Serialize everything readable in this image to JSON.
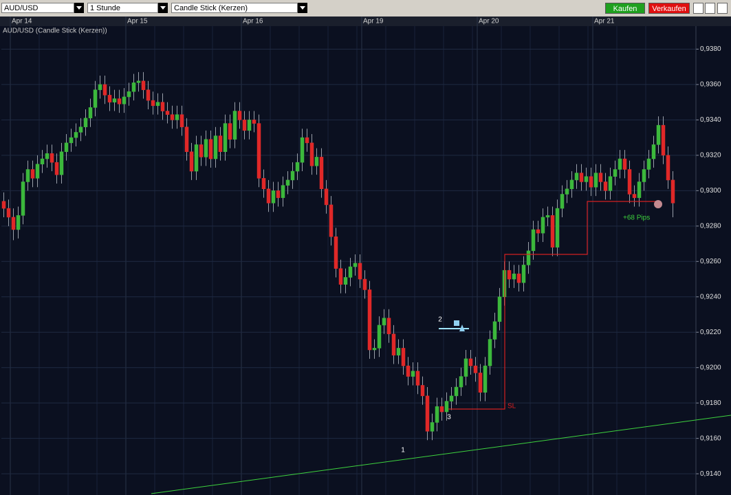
{
  "toolbar": {
    "symbol": "AUD/USD",
    "interval": "1 Stunde",
    "chart_style": "Candle Stick (Kerzen)",
    "buy": "Kaufen",
    "sell": "Verkaufen"
  },
  "chart_data": {
    "type": "candlestick",
    "title": "AUD/USD (Candle Stick (Kerzen))",
    "categories": [
      null,
      null,
      "Apr 14",
      null,
      null,
      null,
      null,
      null,
      null,
      null,
      null,
      null,
      null,
      null,
      null,
      null,
      null,
      null,
      null,
      null,
      null,
      null,
      null,
      null,
      null,
      null,
      "Apr 15",
      null,
      null,
      null,
      null,
      null,
      null,
      null,
      null,
      null,
      null,
      null,
      null,
      null,
      null,
      null,
      null,
      null,
      null,
      null,
      null,
      null,
      null,
      null,
      "Apr 16",
      null,
      null,
      null,
      null,
      null,
      null,
      null,
      null,
      null,
      null,
      null,
      null,
      null,
      null,
      null,
      null,
      null,
      null,
      null,
      null,
      null,
      null,
      null,
      null,
      "Apr 19",
      null,
      null,
      null,
      null,
      null,
      null,
      null,
      null,
      null,
      null,
      null,
      null,
      null,
      null,
      null,
      null,
      null,
      null,
      null,
      null,
      null,
      null,
      null,
      "Apr 20",
      null,
      null,
      null,
      null,
      null,
      null,
      null,
      null,
      null,
      null,
      null,
      null,
      null,
      null,
      null,
      null,
      null,
      null,
      null,
      null,
      null,
      null,
      null,
      "Apr 21",
      null,
      null,
      null,
      null,
      null,
      null,
      null,
      null,
      null,
      null,
      null,
      null,
      null,
      null,
      null,
      null
    ],
    "open": [
      0.9294,
      0.929,
      0.9285,
      0.9278,
      0.9286,
      0.9305,
      0.9312,
      0.9307,
      0.9315,
      0.9318,
      0.9321,
      0.9316,
      0.9309,
      0.9322,
      0.9327,
      0.933,
      0.9333,
      0.9336,
      0.9341,
      0.9347,
      0.9357,
      0.936,
      0.9354,
      0.935,
      0.9352,
      0.9349,
      0.9353,
      0.9356,
      0.9361,
      0.9362,
      0.9357,
      0.9351,
      0.9348,
      0.935,
      0.9345,
      0.9343,
      0.934,
      0.9343,
      0.9336,
      0.9322,
      0.9311,
      0.9326,
      0.9319,
      0.9329,
      0.9318,
      0.9331,
      0.9322,
      0.9338,
      0.9329,
      0.9345,
      0.934,
      0.9334,
      0.934,
      0.9338,
      0.9307,
      0.9301,
      0.9293,
      0.93,
      0.9296,
      0.9303,
      0.9306,
      0.9311,
      0.9316,
      0.933,
      0.9327,
      0.9314,
      0.9319,
      0.9301,
      0.9292,
      0.9274,
      0.9256,
      0.9247,
      0.9251,
      0.9257,
      0.9259,
      0.925,
      0.9244,
      0.921,
      0.9211,
      0.9224,
      0.9228,
      0.9219,
      0.9207,
      0.9211,
      0.9201,
      0.9195,
      0.9198,
      0.919,
      0.9184,
      0.9164,
      0.9169,
      0.9178,
      0.9175,
      0.9181,
      0.9184,
      0.9189,
      0.9195,
      0.9205,
      0.9201,
      0.9197,
      0.9186,
      0.9201,
      0.9216,
      0.9226,
      0.924,
      0.9255,
      0.925,
      0.9253,
      0.9248,
      0.9258,
      0.9266,
      0.9278,
      0.9276,
      0.9285,
      0.9286,
      0.9268,
      0.929,
      0.9298,
      0.9301,
      0.9306,
      0.931,
      0.9305,
      0.9308,
      0.9302,
      0.931,
      0.9305,
      0.93,
      0.9308,
      0.9312,
      0.9318,
      0.9312,
      0.9298,
      0.9296,
      0.9305,
      0.9312,
      0.9318,
      0.9326,
      0.9337,
      0.932,
      0.9306
    ],
    "high": [
      0.9299,
      0.9295,
      0.929,
      0.9291,
      0.931,
      0.9317,
      0.9317,
      0.932,
      0.9323,
      0.9326,
      0.9326,
      0.9321,
      0.9327,
      0.9332,
      0.9335,
      0.9338,
      0.9341,
      0.9346,
      0.9352,
      0.9362,
      0.9365,
      0.9365,
      0.9359,
      0.9357,
      0.9357,
      0.9358,
      0.9361,
      0.9366,
      0.9367,
      0.9367,
      0.9362,
      0.9356,
      0.9355,
      0.9355,
      0.935,
      0.9348,
      0.9348,
      0.9348,
      0.9341,
      0.9327,
      0.9331,
      0.9331,
      0.9334,
      0.9334,
      0.9336,
      0.9336,
      0.9343,
      0.9343,
      0.935,
      0.935,
      0.9345,
      0.9345,
      0.9345,
      0.9343,
      0.9312,
      0.9306,
      0.9305,
      0.9305,
      0.9308,
      0.9311,
      0.9316,
      0.9321,
      0.9335,
      0.9335,
      0.9332,
      0.9324,
      0.9324,
      0.9306,
      0.9297,
      0.9279,
      0.9261,
      0.9256,
      0.9262,
      0.9264,
      0.9264,
      0.9255,
      0.9249,
      0.9216,
      0.9229,
      0.9233,
      0.9233,
      0.9224,
      0.9216,
      0.9216,
      0.9206,
      0.9203,
      0.9203,
      0.9195,
      0.9189,
      0.9174,
      0.9183,
      0.9183,
      0.9186,
      0.9189,
      0.9194,
      0.92,
      0.921,
      0.921,
      0.9206,
      0.9202,
      0.9206,
      0.9221,
      0.9231,
      0.9245,
      0.926,
      0.926,
      0.9258,
      0.9258,
      0.9263,
      0.9271,
      0.9283,
      0.9283,
      0.929,
      0.9291,
      0.9291,
      0.9295,
      0.9303,
      0.9306,
      0.9311,
      0.9315,
      0.9315,
      0.9313,
      0.9313,
      0.9315,
      0.9315,
      0.931,
      0.9313,
      0.9317,
      0.9323,
      0.9323,
      0.9317,
      0.9303,
      0.931,
      0.9317,
      0.9323,
      0.9331,
      0.9342,
      0.9342,
      0.9325,
      0.9311
    ],
    "low": [
      0.9285,
      0.928,
      0.9272,
      0.9273,
      0.9281,
      0.93,
      0.9302,
      0.9302,
      0.931,
      0.9313,
      0.9311,
      0.9304,
      0.9304,
      0.9317,
      0.9322,
      0.9325,
      0.9328,
      0.9331,
      0.9336,
      0.9342,
      0.9352,
      0.9349,
      0.9345,
      0.9345,
      0.9344,
      0.9344,
      0.9348,
      0.9351,
      0.9356,
      0.9352,
      0.9346,
      0.9343,
      0.9343,
      0.934,
      0.9338,
      0.9335,
      0.9335,
      0.9331,
      0.9317,
      0.9306,
      0.9306,
      0.9314,
      0.9314,
      0.9313,
      0.9313,
      0.9317,
      0.9317,
      0.9324,
      0.9324,
      0.9335,
      0.9329,
      0.9329,
      0.9333,
      0.9302,
      0.9296,
      0.9288,
      0.9288,
      0.9291,
      0.9291,
      0.9298,
      0.9301,
      0.9306,
      0.9311,
      0.9322,
      0.9309,
      0.9309,
      0.9296,
      0.9287,
      0.9269,
      0.9251,
      0.9242,
      0.9242,
      0.9246,
      0.9252,
      0.9245,
      0.9239,
      0.9205,
      0.9205,
      0.9206,
      0.9219,
      0.9214,
      0.9202,
      0.9202,
      0.9196,
      0.919,
      0.919,
      0.9185,
      0.9179,
      0.9159,
      0.9159,
      0.9164,
      0.917,
      0.917,
      0.9176,
      0.9179,
      0.9184,
      0.919,
      0.9196,
      0.9192,
      0.9181,
      0.9181,
      0.9196,
      0.9211,
      0.9221,
      0.9235,
      0.9245,
      0.9245,
      0.9243,
      0.9243,
      0.9253,
      0.9261,
      0.9271,
      0.9271,
      0.928,
      0.9263,
      0.9263,
      0.9285,
      0.9293,
      0.9296,
      0.9301,
      0.93,
      0.93,
      0.9297,
      0.9297,
      0.93,
      0.9295,
      0.9295,
      0.9303,
      0.9307,
      0.9307,
      0.9293,
      0.9291,
      0.9291,
      0.93,
      0.9307,
      0.9313,
      0.9321,
      0.9315,
      0.9301,
      0.9285
    ],
    "close": [
      0.929,
      0.9285,
      0.9278,
      0.9286,
      0.9305,
      0.9312,
      0.9307,
      0.9315,
      0.9318,
      0.9321,
      0.9316,
      0.9309,
      0.9322,
      0.9327,
      0.933,
      0.9333,
      0.9336,
      0.9341,
      0.9347,
      0.9357,
      0.936,
      0.9354,
      0.935,
      0.9352,
      0.9349,
      0.9353,
      0.9356,
      0.9361,
      0.9362,
      0.9357,
      0.9351,
      0.9348,
      0.935,
      0.9345,
      0.9343,
      0.934,
      0.9343,
      0.9336,
      0.9322,
      0.9311,
      0.9326,
      0.9319,
      0.9329,
      0.9318,
      0.9331,
      0.9322,
      0.9338,
      0.9329,
      0.9345,
      0.934,
      0.9334,
      0.934,
      0.9338,
      0.9307,
      0.9301,
      0.9293,
      0.93,
      0.9296,
      0.9303,
      0.9306,
      0.9311,
      0.9316,
      0.933,
      0.9327,
      0.9314,
      0.9319,
      0.9301,
      0.9292,
      0.9274,
      0.9256,
      0.9247,
      0.9251,
      0.9257,
      0.9259,
      0.925,
      0.9244,
      0.921,
      0.9211,
      0.9224,
      0.9228,
      0.9219,
      0.9207,
      0.9211,
      0.9201,
      0.9195,
      0.9198,
      0.919,
      0.9184,
      0.9164,
      0.9169,
      0.9178,
      0.9175,
      0.9181,
      0.9184,
      0.9189,
      0.9195,
      0.9205,
      0.9201,
      0.9197,
      0.9186,
      0.9201,
      0.9216,
      0.9226,
      0.924,
      0.9255,
      0.925,
      0.9253,
      0.9248,
      0.9258,
      0.9266,
      0.9278,
      0.9276,
      0.9285,
      0.9286,
      0.9268,
      0.929,
      0.9298,
      0.9301,
      0.9306,
      0.931,
      0.9305,
      0.9308,
      0.9302,
      0.931,
      0.9305,
      0.93,
      0.9308,
      0.9312,
      0.9318,
      0.9312,
      0.9298,
      0.9296,
      0.9305,
      0.9312,
      0.9318,
      0.9326,
      0.9337,
      0.932,
      0.9306,
      0.9293
    ],
    "up_color": "#3cb83c",
    "down_color": "#e02828",
    "ylim": [
      0.9128,
      0.9393
    ],
    "yticks": [
      {
        "value": 0.914,
        "label": "0,9140"
      },
      {
        "value": 0.916,
        "label": "0,9160"
      },
      {
        "value": 0.918,
        "label": "0,9180"
      },
      {
        "value": 0.92,
        "label": "0,9200"
      },
      {
        "value": 0.922,
        "label": "0,9220"
      },
      {
        "value": 0.924,
        "label": "0,9240"
      },
      {
        "value": 0.926,
        "label": "0,9260"
      },
      {
        "value": 0.928,
        "label": "0,9280"
      },
      {
        "value": 0.93,
        "label": "0,9300"
      },
      {
        "value": 0.932,
        "label": "0,9320"
      },
      {
        "value": 0.934,
        "label": "0,9340"
      },
      {
        "value": 0.936,
        "label": "0,9360"
      },
      {
        "value": 0.938,
        "label": "0,9380"
      }
    ],
    "grid": true,
    "annotations": {
      "point_1": "1",
      "point_2": "2",
      "point_3": "3",
      "stop_loss": "SL",
      "profit": "+68 Pips"
    }
  }
}
